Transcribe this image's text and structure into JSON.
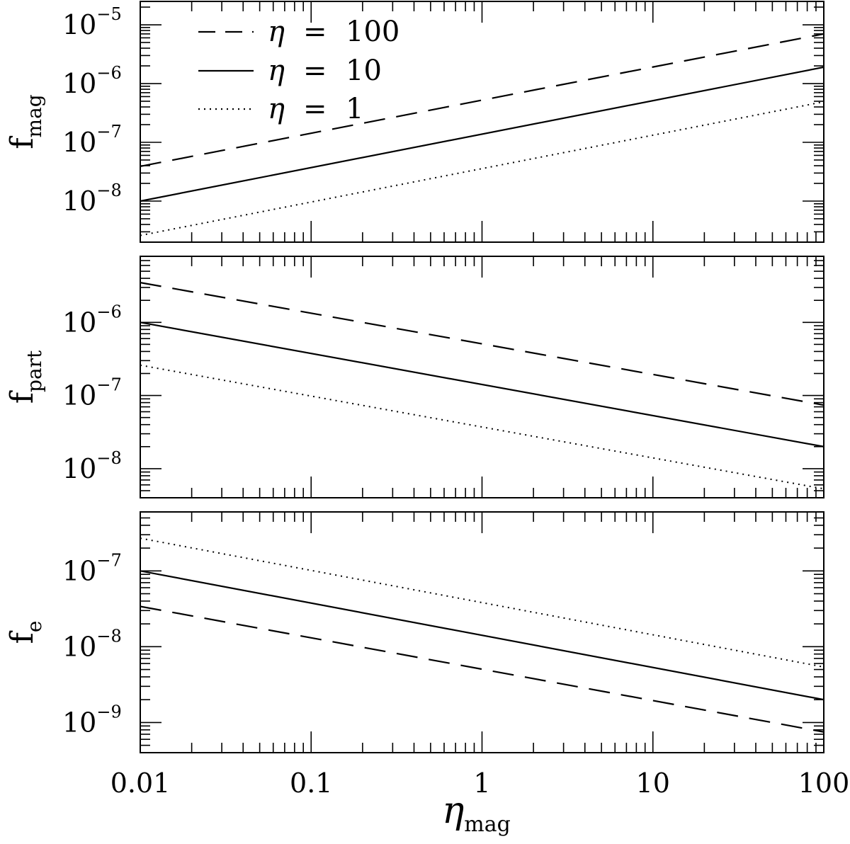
{
  "chart_data": [
    {
      "type": "line",
      "panel": "top",
      "ylabel": "f",
      "ylabel_sub": "mag",
      "xlabel": "",
      "xscale": "log",
      "yscale": "log",
      "xlim": [
        0.01,
        100
      ],
      "ylim": [
        2e-09,
        2.5e-05
      ],
      "ytick_labels": [
        {
          "base": "10",
          "exp": "−5",
          "value": 1e-05
        },
        {
          "base": "10",
          "exp": "−6",
          "value": 1e-06
        },
        {
          "base": "10",
          "exp": "−7",
          "value": 1e-07
        },
        {
          "base": "10",
          "exp": "−8",
          "value": 1e-08
        }
      ],
      "legend": {
        "position": "top-left"
      },
      "series": [
        {
          "name": "η = 100",
          "legend_symbol": "η",
          "legend_eq": "=",
          "legend_value": "100",
          "style": "dashed",
          "x": [
            0.01,
            100
          ],
          "y": [
            3.9e-08,
            7e-06
          ]
        },
        {
          "name": "η = 10",
          "legend_symbol": "η",
          "legend_eq": "=",
          "legend_value": "10",
          "style": "solid",
          "x": [
            0.01,
            100
          ],
          "y": [
            1e-08,
            1.9e-06
          ]
        },
        {
          "name": "η = 1",
          "legend_symbol": "η",
          "legend_eq": "=",
          "legend_value": "1",
          "style": "dotted",
          "x": [
            0.01,
            100
          ],
          "y": [
            2.6e-09,
            4.9e-07
          ]
        }
      ]
    },
    {
      "type": "line",
      "panel": "middle",
      "ylabel": "f",
      "ylabel_sub": "part",
      "xlabel": "",
      "xscale": "log",
      "yscale": "log",
      "xlim": [
        0.01,
        100
      ],
      "ylim": [
        4e-09,
        8e-06
      ],
      "ytick_labels": [
        {
          "base": "10",
          "exp": "−6",
          "value": 1e-06
        },
        {
          "base": "10",
          "exp": "−7",
          "value": 1e-07
        },
        {
          "base": "10",
          "exp": "−8",
          "value": 1e-08
        }
      ],
      "series": [
        {
          "name": "η = 100",
          "style": "dashed",
          "x": [
            0.01,
            100
          ],
          "y": [
            3.5e-06,
            7.4e-08
          ]
        },
        {
          "name": "η = 10",
          "style": "solid",
          "x": [
            0.01,
            100
          ],
          "y": [
            1e-06,
            2e-08
          ]
        },
        {
          "name": "η = 1",
          "style": "dotted",
          "x": [
            0.01,
            100
          ],
          "y": [
            2.6e-07,
            5.3e-09
          ]
        }
      ]
    },
    {
      "type": "line",
      "panel": "bottom",
      "ylabel": "f",
      "ylabel_sub": "e",
      "xlabel": "η",
      "xlabel_sub": "mag",
      "xscale": "log",
      "yscale": "log",
      "xlim": [
        0.01,
        100
      ],
      "ylim": [
        4e-10,
        6e-07
      ],
      "ytick_labels": [
        {
          "base": "10",
          "exp": "−7",
          "value": 1e-07
        },
        {
          "base": "10",
          "exp": "−8",
          "value": 1e-08
        },
        {
          "base": "10",
          "exp": "−9",
          "value": 1e-09
        }
      ],
      "xtick_labels": [
        {
          "label": "0.01",
          "value": 0.01
        },
        {
          "label": "0.1",
          "value": 0.1
        },
        {
          "label": "1",
          "value": 1
        },
        {
          "label": "10",
          "value": 10
        },
        {
          "label": "100",
          "value": 100
        }
      ],
      "series": [
        {
          "name": "η = 100",
          "style": "dashed",
          "x": [
            0.01,
            100
          ],
          "y": [
            3.4e-08,
            7.5e-10
          ]
        },
        {
          "name": "η = 10",
          "style": "solid",
          "x": [
            0.01,
            100
          ],
          "y": [
            1e-07,
            2e-09
          ]
        },
        {
          "name": "η = 1",
          "style": "dotted",
          "x": [
            0.01,
            100
          ],
          "y": [
            2.7e-07,
            5.4e-09
          ]
        }
      ]
    }
  ]
}
